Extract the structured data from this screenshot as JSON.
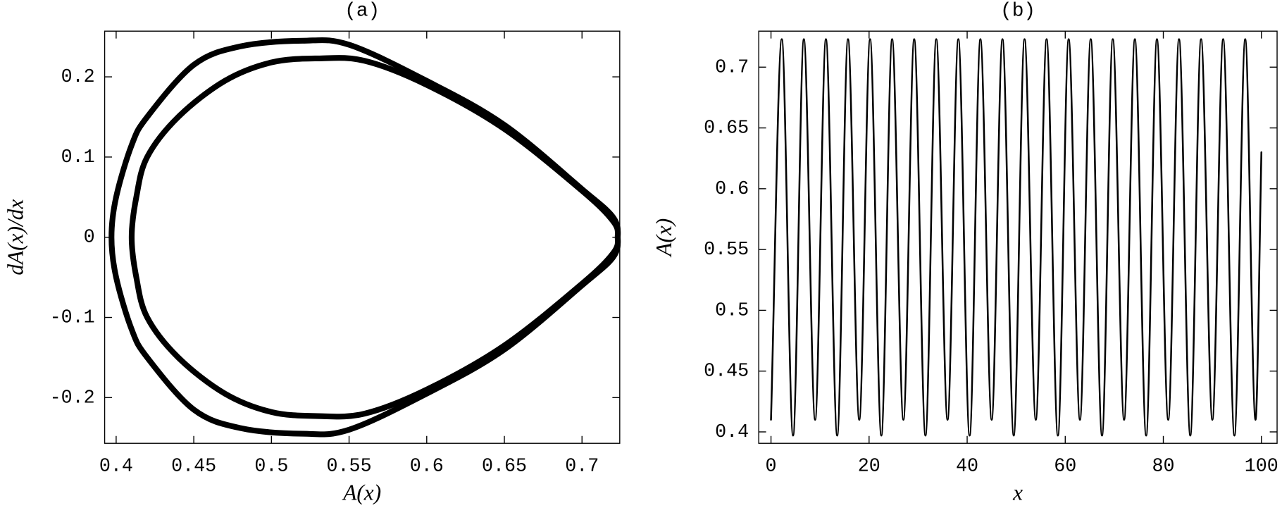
{
  "chart_data": [
    {
      "type": "line",
      "title": "(a)",
      "xlabel": "A(x)",
      "ylabel": "dA(x)/dx",
      "xlim": [
        0.3926,
        0.7243
      ],
      "ylim": [
        -0.257,
        0.257
      ],
      "xticks": [
        0.4,
        0.45,
        0.5,
        0.55,
        0.6,
        0.65,
        0.7
      ],
      "yticks": [
        -0.2,
        -0.1,
        0,
        0.1,
        0.2
      ],
      "closed": true,
      "series": [
        {
          "color": "#000000",
          "x": [
            0.397,
            0.4,
            0.41,
            0.42,
            0.45,
            0.48,
            0.52,
            0.55,
            0.6,
            0.65,
            0.7,
            0.72,
            0.723,
            0.72,
            0.7,
            0.65,
            0.6,
            0.55,
            0.52,
            0.48,
            0.45,
            0.42,
            0.41,
            0.4
          ],
          "values": [
            0,
            0.05,
            0.115,
            0.15,
            0.215,
            0.238,
            0.245,
            0.24,
            0.195,
            0.14,
            0.06,
            0.025,
            0,
            -0.025,
            -0.06,
            -0.14,
            -0.195,
            -0.24,
            -0.245,
            -0.238,
            -0.215,
            -0.15,
            -0.115,
            -0.05
          ]
        },
        {
          "color": "#000000",
          "x": [
            0.41,
            0.413,
            0.42,
            0.44,
            0.47,
            0.5,
            0.53,
            0.56,
            0.6,
            0.65,
            0.7,
            0.72,
            0.723,
            0.72,
            0.7,
            0.65,
            0.6,
            0.56,
            0.53,
            0.5,
            0.47,
            0.44,
            0.42,
            0.413
          ],
          "values": [
            0,
            0.05,
            0.1,
            0.15,
            0.195,
            0.218,
            0.223,
            0.22,
            0.19,
            0.135,
            0.058,
            0.02,
            0,
            -0.02,
            -0.058,
            -0.135,
            -0.19,
            -0.22,
            -0.223,
            -0.218,
            -0.195,
            -0.15,
            -0.1,
            -0.05
          ]
        }
      ]
    },
    {
      "type": "line",
      "title": "(b)",
      "xlabel": "x",
      "ylabel": "A(x)",
      "xlim": [
        -2.5,
        103.2
      ],
      "ylim": [
        0.3906,
        0.7296
      ],
      "xticks": [
        0,
        20,
        40,
        60,
        80,
        100
      ],
      "yticks": [
        0.4,
        0.45,
        0.5,
        0.55,
        0.6,
        0.65,
        0.7
      ],
      "closed": false,
      "series": [
        {
          "color": "#000000",
          "x": [
            0,
            2.2,
            4.5,
            6.7,
            9,
            11.2,
            13.5,
            15.7,
            18,
            20.2,
            22.5,
            24.7,
            27,
            29.2,
            31.5,
            33.7,
            36,
            38.2,
            40.5,
            42.7,
            45,
            47.2,
            49.5,
            51.7,
            54,
            56.2,
            58.5,
            60.7,
            63,
            65.2,
            67.5,
            69.7,
            72,
            74.2,
            76.5,
            78.7,
            81,
            83.2,
            85.5,
            87.7,
            90,
            92.2,
            94.5,
            96.7,
            98.8,
            100
          ],
          "values": [
            0.41,
            0.723,
            0.397,
            0.723,
            0.41,
            0.723,
            0.397,
            0.723,
            0.41,
            0.723,
            0.397,
            0.723,
            0.41,
            0.723,
            0.397,
            0.723,
            0.41,
            0.723,
            0.397,
            0.723,
            0.41,
            0.723,
            0.397,
            0.723,
            0.41,
            0.723,
            0.397,
            0.723,
            0.41,
            0.723,
            0.397,
            0.723,
            0.41,
            0.723,
            0.397,
            0.723,
            0.41,
            0.723,
            0.397,
            0.723,
            0.41,
            0.723,
            0.397,
            0.723,
            0.41,
            0.63
          ]
        }
      ]
    }
  ]
}
